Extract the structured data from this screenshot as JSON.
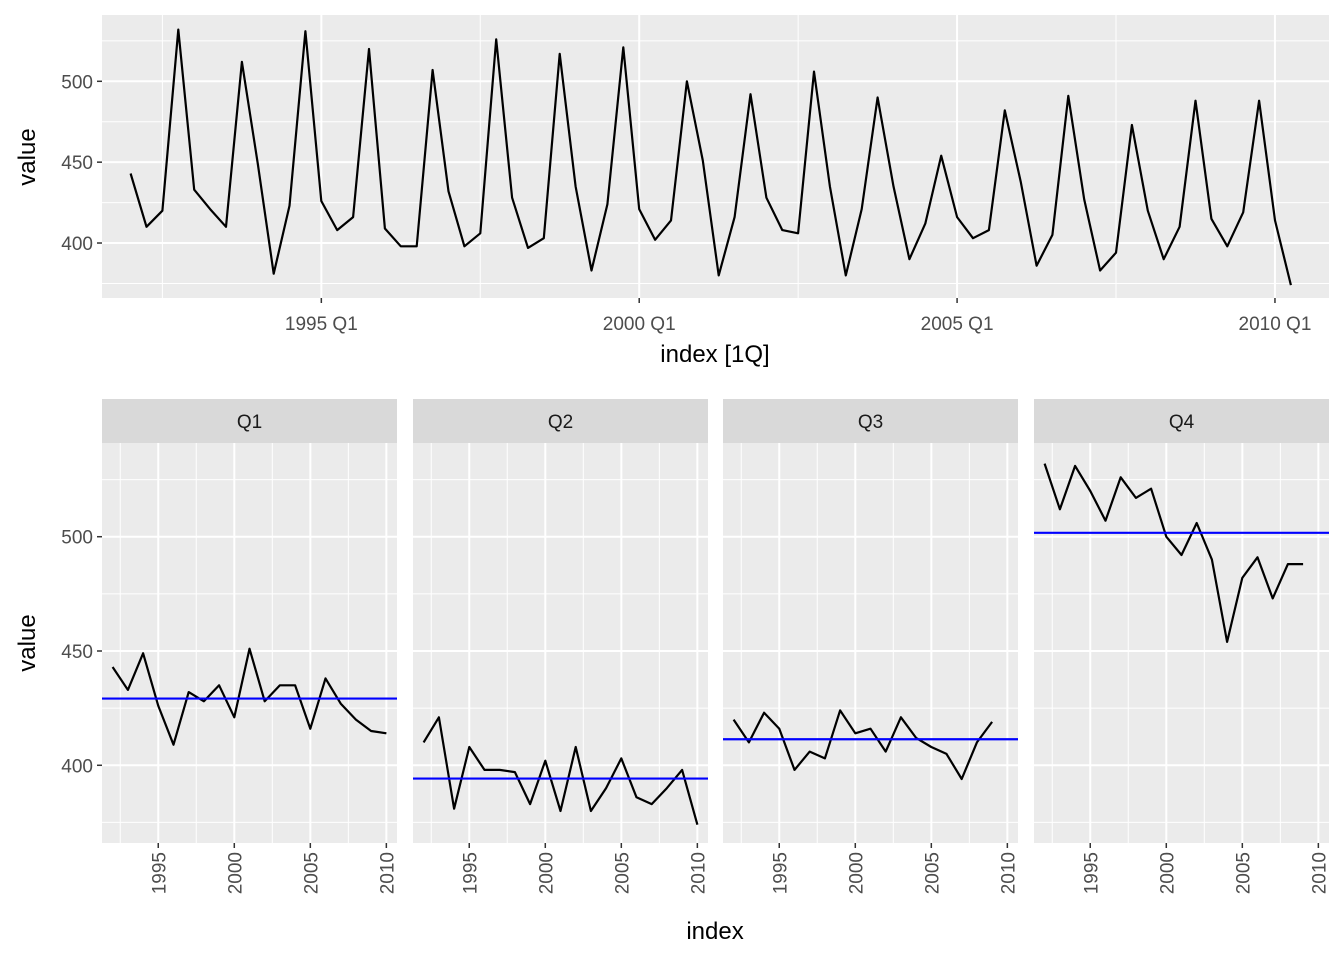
{
  "colors": {
    "panel_bg": "#EBEBEB",
    "grid_major": "#FFFFFF",
    "strip_bg": "#D9D9D9",
    "series_line": "#000000",
    "mean_line": "#0000FF"
  },
  "chart_data": [
    {
      "type": "line",
      "title": "",
      "xlabel": "index [1Q]",
      "ylabel": "value",
      "x_range": [
        1991.55,
        2010.85
      ],
      "ylim": [
        366,
        541
      ],
      "x_ticks": [
        {
          "value": 1995.0,
          "label": "1995 Q1"
        },
        {
          "value": 2000.0,
          "label": "2000 Q1"
        },
        {
          "value": 2005.0,
          "label": "2005 Q1"
        },
        {
          "value": 2010.0,
          "label": "2010 Q1"
        }
      ],
      "y_ticks": [
        {
          "value": 400,
          "label": "400"
        },
        {
          "value": 450,
          "label": "450"
        },
        {
          "value": 500,
          "label": "500"
        }
      ],
      "series": [
        {
          "start": 1992.0,
          "step": 0.25,
          "values": [
            443,
            410,
            420,
            532,
            433,
            421,
            410,
            512,
            449,
            381,
            423,
            531,
            426,
            408,
            416,
            520,
            409,
            398,
            398,
            507,
            432,
            398,
            406,
            526,
            428,
            397,
            403,
            517,
            435,
            383,
            424,
            521,
            421,
            402,
            414,
            500,
            451,
            380,
            416,
            492,
            428,
            408,
            406,
            506,
            435,
            380,
            421,
            490,
            435,
            390,
            412,
            454,
            416,
            403,
            408,
            482,
            438,
            386,
            405,
            491,
            427,
            383,
            394,
            473,
            420,
            390,
            410,
            488,
            415,
            398,
            419,
            488,
            414,
            374
          ]
        }
      ]
    },
    {
      "type": "line",
      "title": "",
      "xlabel": "index",
      "ylabel": "value",
      "facets": [
        "Q1",
        "Q2",
        "Q3",
        "Q4"
      ],
      "x_range": [
        1991.3,
        2010.7
      ],
      "ylim": [
        366,
        541
      ],
      "x_ticks": [
        {
          "value": 1995,
          "label": "1995"
        },
        {
          "value": 2000,
          "label": "2000"
        },
        {
          "value": 2005,
          "label": "2005"
        },
        {
          "value": 2010,
          "label": "2010"
        }
      ],
      "y_ticks": [
        {
          "value": 400,
          "label": "400"
        },
        {
          "value": 450,
          "label": "450"
        },
        {
          "value": 500,
          "label": "500"
        }
      ],
      "series": [
        {
          "name": "Q1",
          "x": [
            1992,
            1993,
            1994,
            1995,
            1996,
            1997,
            1998,
            1999,
            2000,
            2001,
            2002,
            2003,
            2004,
            2005,
            2006,
            2007,
            2008,
            2009,
            2010
          ],
          "values": [
            443,
            433,
            449,
            426,
            409,
            432,
            428,
            435,
            421,
            451,
            428,
            435,
            435,
            416,
            438,
            427,
            420,
            415,
            414
          ],
          "mean": 429.2
        },
        {
          "name": "Q2",
          "x": [
            1992,
            1993,
            1994,
            1995,
            1996,
            1997,
            1998,
            1999,
            2000,
            2001,
            2002,
            2003,
            2004,
            2005,
            2006,
            2007,
            2008,
            2009,
            2010
          ],
          "values": [
            410,
            421,
            381,
            408,
            398,
            398,
            397,
            383,
            402,
            380,
            408,
            380,
            390,
            403,
            386,
            383,
            390,
            398,
            374
          ],
          "mean": 394.2
        },
        {
          "name": "Q3",
          "x": [
            1992,
            1993,
            1994,
            1995,
            1996,
            1997,
            1998,
            1999,
            2000,
            2001,
            2002,
            2003,
            2004,
            2005,
            2006,
            2007,
            2008,
            2009
          ],
          "values": [
            420,
            410,
            423,
            416,
            398,
            406,
            403,
            424,
            414,
            416,
            406,
            421,
            412,
            408,
            405,
            394,
            410,
            419
          ],
          "mean": 411.4
        },
        {
          "name": "Q4",
          "x": [
            1992,
            1993,
            1994,
            1995,
            1996,
            1997,
            1998,
            1999,
            2000,
            2001,
            2002,
            2003,
            2004,
            2005,
            2006,
            2007,
            2008,
            2009
          ],
          "values": [
            532,
            512,
            531,
            520,
            507,
            526,
            517,
            521,
            500,
            492,
            506,
            490,
            454,
            482,
            491,
            473,
            488,
            488
          ],
          "mean": 501.7
        }
      ]
    }
  ]
}
